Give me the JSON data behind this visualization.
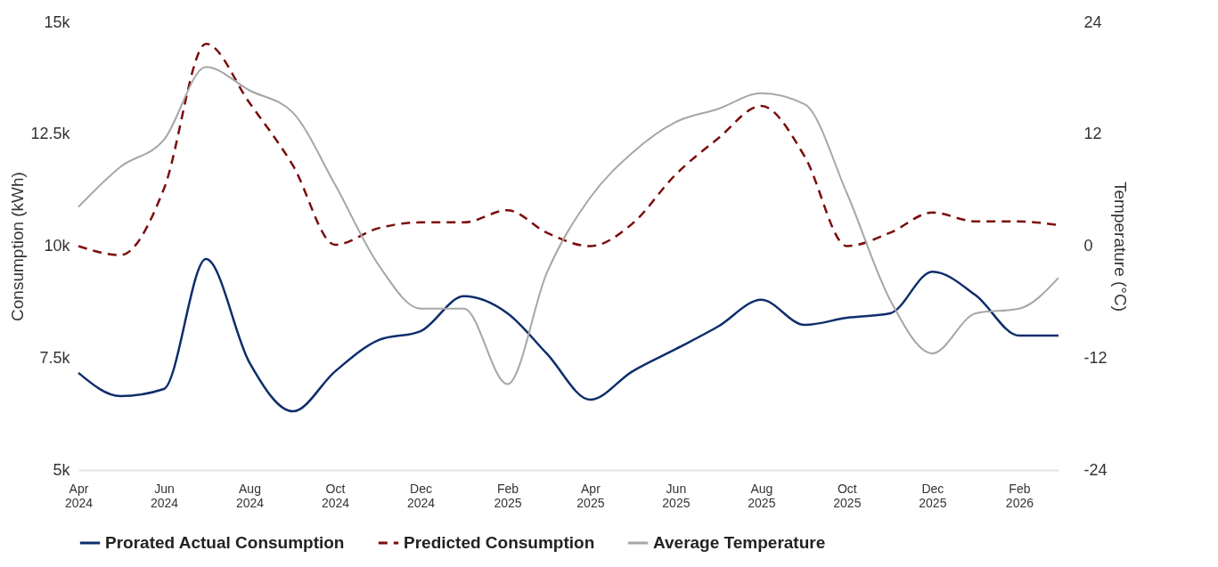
{
  "chart_data": {
    "type": "line",
    "ylabel": "Consumption (kWh)",
    "y2label": "Temperature (°C)",
    "x": [
      "2024-04",
      "2024-05",
      "2024-06",
      "2024-07",
      "2024-08",
      "2024-09",
      "2024-10",
      "2024-11",
      "2024-12",
      "2025-01",
      "2025-02",
      "2025-03",
      "2025-04",
      "2025-05",
      "2025-06",
      "2025-07",
      "2025-08",
      "2025-09",
      "2025-10",
      "2025-11",
      "2025-12",
      "2026-01",
      "2026-02",
      "2026-03"
    ],
    "xlim": [
      "2024-04",
      "2026-03"
    ],
    "xticks": [
      {
        "value": "2024-04",
        "label": "Apr 2024"
      },
      {
        "value": "2024-06",
        "label": "Jun 2024"
      },
      {
        "value": "2024-08",
        "label": "Aug 2024"
      },
      {
        "value": "2024-10",
        "label": "Oct 2024"
      },
      {
        "value": "2024-12",
        "label": "Dec 2024"
      },
      {
        "value": "2025-02",
        "label": "Feb 2025"
      },
      {
        "value": "2025-04",
        "label": "Apr 2025"
      },
      {
        "value": "2025-06",
        "label": "Jun 2025"
      },
      {
        "value": "2025-08",
        "label": "Aug 2025"
      },
      {
        "value": "2025-10",
        "label": "Oct 2025"
      },
      {
        "value": "2025-12",
        "label": "Dec 2025"
      },
      {
        "value": "2026-02",
        "label": "Feb 2026"
      }
    ],
    "ylim": [
      5000,
      15000
    ],
    "yticks": [
      {
        "value": 5000,
        "label": "5k"
      },
      {
        "value": 7500,
        "label": "7.5k"
      },
      {
        "value": 10000,
        "label": "10k"
      },
      {
        "value": 12500,
        "label": "12.5k"
      },
      {
        "value": 15000,
        "label": "15k"
      }
    ],
    "y2lim": [
      -24,
      24
    ],
    "y2ticks": [
      -24,
      -12,
      0,
      12,
      24
    ],
    "legend": "bottom",
    "series": [
      {
        "name": "Prorated Actual Consumption",
        "color": "#0d2d6b",
        "line_style": "solid",
        "values": [
          7170,
          6650,
          6810,
          9710,
          7400,
          6310,
          7200,
          7900,
          8100,
          8880,
          8500,
          7600,
          6570,
          7200,
          7700,
          8200,
          8800,
          8240,
          8400,
          8500,
          9430,
          8900,
          8000,
          8000
        ]
      },
      {
        "name": "Predicted Consumption",
        "color": "#7b0c0c",
        "line_style": "dashed",
        "values": [
          10000,
          9800,
          11280,
          14520,
          13200,
          11800,
          10030,
          10400,
          10530,
          10530,
          10800,
          10300,
          10000,
          10500,
          11600,
          12400,
          13130,
          12000,
          10000,
          10300,
          10750,
          10550,
          10550,
          10470
        ]
      },
      {
        "name": "Average Temperature",
        "color": "#a6a6a6",
        "line_style": "solid",
        "axis": "y2",
        "values": [
          4.2,
          8.5,
          11.4,
          19.2,
          16.7,
          14.3,
          6.6,
          -2.0,
          -6.7,
          -6.7,
          -14.8,
          -2.9,
          5.2,
          10.0,
          13.3,
          14.7,
          16.4,
          15.2,
          5.7,
          -5.8,
          -11.5,
          -7.2,
          -6.7,
          -3.4
        ]
      }
    ]
  }
}
